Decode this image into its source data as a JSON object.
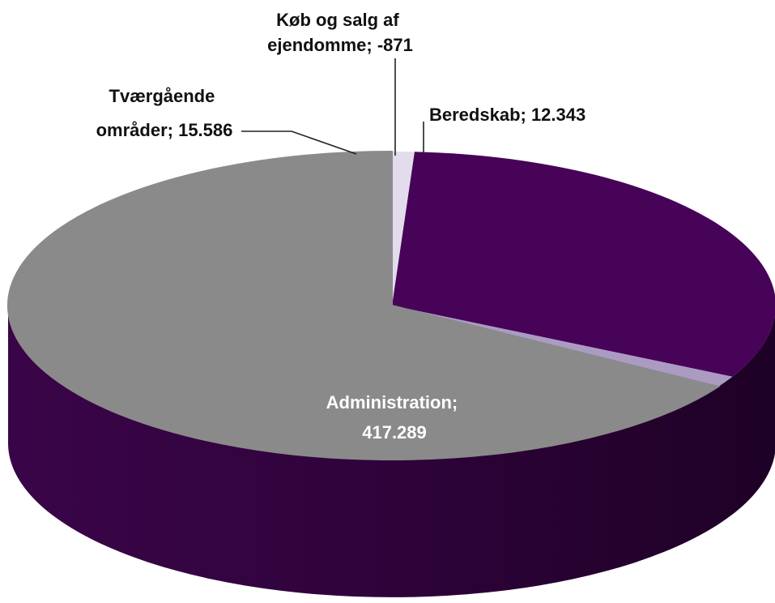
{
  "chart_data": {
    "type": "pie",
    "title": "",
    "slices": [
      {
        "name": "Administration",
        "value": 417.289,
        "label_lines": [
          "Administration;",
          "417.289"
        ],
        "color": "#470358"
      },
      {
        "name": "Tværgående områder",
        "value": 15.586,
        "label_lines": [
          "Tværgående",
          "områder; 15.586"
        ],
        "color": "#ab9bc3"
      },
      {
        "name": "Køb og salg af ejendomme",
        "value": -871,
        "label_lines": [
          "Køb og salg af",
          "ejendomme; -871"
        ],
        "color": "#8a8a8a"
      },
      {
        "name": "Beredskab",
        "value": 12.343,
        "label_lines": [
          "Beredskab; 12.343"
        ],
        "color": "#e3dcec"
      }
    ],
    "side_color": "#2c0236",
    "side_color_light": "#3a0548"
  }
}
